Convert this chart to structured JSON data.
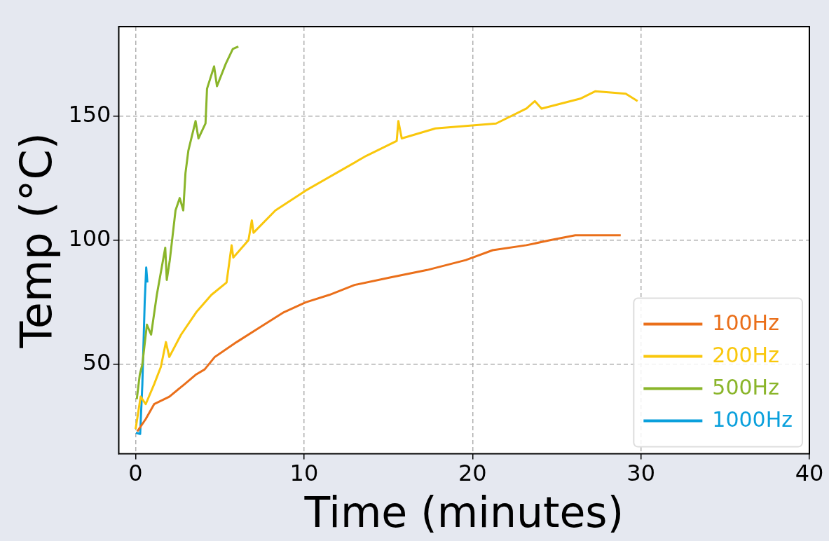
{
  "chart_data": {
    "type": "line",
    "xlabel": "Time (minutes)",
    "ylabel": "Temp (°C)",
    "xlim": [
      -1,
      40
    ],
    "ylim": [
      14,
      186
    ],
    "xticks": [
      0,
      10,
      20,
      30,
      40
    ],
    "yticks": [
      50,
      100,
      150
    ],
    "grid": true,
    "legend": "bottom right",
    "line_style": "solid",
    "series": [
      {
        "name": "100Hz",
        "color": "#ea6f1a",
        "x": [
          0.1,
          0.6,
          1.1,
          2,
          2.9,
          3.6,
          4.1,
          4.7,
          6,
          7.4,
          8.8,
          10.1,
          11.5,
          13,
          15.1,
          17.3,
          19.6,
          21.2,
          23.2,
          24.6,
          26.1,
          28.8
        ],
        "values": [
          23,
          28,
          34,
          37,
          42,
          46,
          48,
          53,
          59,
          65,
          71,
          75,
          78,
          82,
          85,
          88,
          92,
          96,
          98,
          100,
          102,
          102
        ]
      },
      {
        "name": "200Hz",
        "color": "#f9c70c",
        "x": [
          0,
          0.3,
          0.6,
          1.1,
          1.5,
          1.8,
          2,
          2.7,
          3.6,
          4.5,
          5.4,
          5.7,
          5.8,
          6.7,
          6.9,
          7,
          8.3,
          10.1,
          11.9,
          13.7,
          15.5,
          15.6,
          15.8,
          17.8,
          19.6,
          21.4,
          23.2,
          23.7,
          24.1,
          26.4,
          27.3,
          29.1,
          29.8
        ],
        "values": [
          24,
          37,
          34,
          42,
          49,
          59,
          53,
          62,
          71,
          78,
          83,
          98,
          93,
          100,
          108,
          103,
          112,
          120,
          127,
          134,
          140,
          148,
          141,
          145,
          146,
          147,
          153,
          156,
          153,
          157,
          160,
          159,
          156
        ]
      },
      {
        "name": "500Hz",
        "color": "#8ab52a",
        "x": [
          0.07,
          0.25,
          0.4,
          0.67,
          0.92,
          1.26,
          1.76,
          1.85,
          2.03,
          2.37,
          2.62,
          2.83,
          2.96,
          3.13,
          3.56,
          3.73,
          4.15,
          4.24,
          4.66,
          4.83,
          5.35,
          5.77,
          6.1
        ],
        "values": [
          36,
          46,
          50,
          66,
          62,
          78,
          97,
          84,
          92,
          112,
          117,
          112,
          127,
          136,
          148,
          141,
          147,
          161,
          170,
          162,
          171,
          177,
          178
        ]
      },
      {
        "name": "1000Hz",
        "color": "#0aa0dc",
        "x": [
          0.02,
          0.27,
          0.4,
          0.54,
          0.63,
          0.7
        ],
        "values": [
          22.5,
          22,
          42,
          75,
          89,
          83
        ]
      }
    ]
  }
}
